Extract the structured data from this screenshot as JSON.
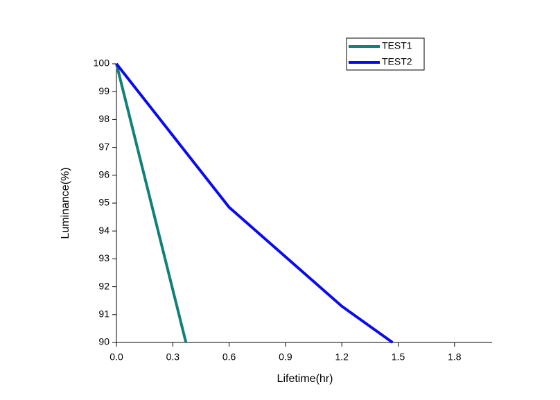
{
  "chart_data": {
    "type": "line",
    "x_label": "Lifetime(hr)",
    "y_label": "Luminance(%)",
    "series": [
      {
        "name": "TEST1",
        "color": "#10807a",
        "x": [
          0,
          0.37
        ],
        "values": [
          100,
          90
        ]
      },
      {
        "name": "TEST2",
        "color": "#0a0af0",
        "x": [
          0,
          0.6,
          1.2,
          1.47
        ],
        "values": [
          100,
          94.85,
          91.3,
          90
        ]
      }
    ],
    "xlim": [
      0,
      2.0
    ],
    "ylim": [
      90,
      100
    ],
    "xticks": [
      {
        "value": 0,
        "label": "0.0"
      },
      0.3,
      0.6,
      0.9,
      1.2,
      1.5,
      1.8
    ],
    "yticks": [
      90,
      91,
      92,
      93,
      94,
      95,
      96,
      97,
      98,
      99,
      100
    ],
    "legend": "upper right",
    "grid": false
  }
}
